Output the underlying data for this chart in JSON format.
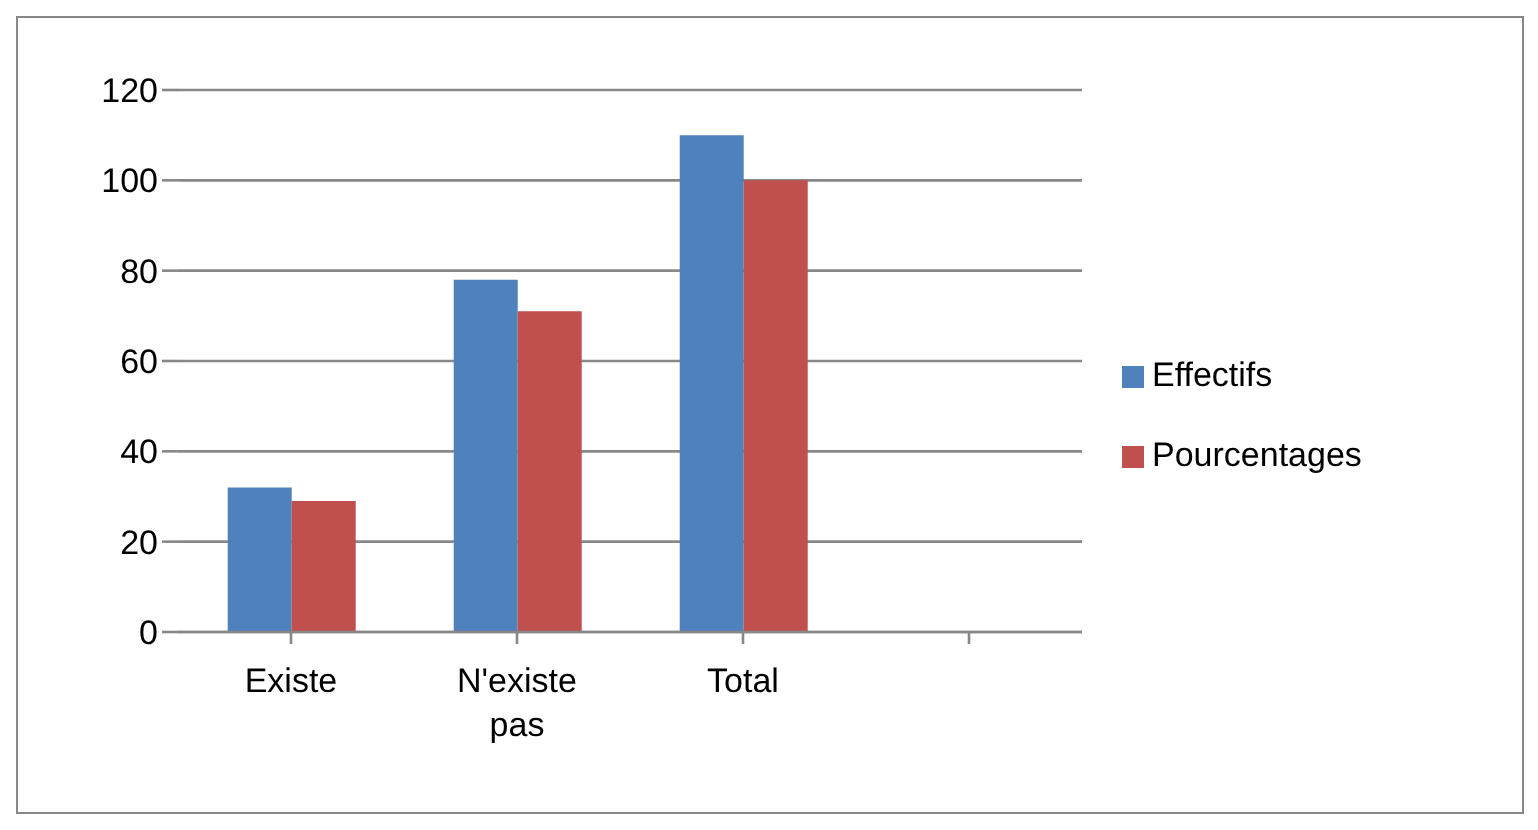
{
  "chart_data": {
    "type": "bar",
    "categories": [
      "Existe",
      "N'existe pas",
      "Total",
      null
    ],
    "series": [
      {
        "name": "Effectifs",
        "color": "#4f81bd",
        "values": [
          32,
          78,
          110,
          null
        ]
      },
      {
        "name": "Pourcentages",
        "color": "#c0504d",
        "values": [
          29,
          71,
          100,
          null
        ]
      }
    ],
    "ylim": [
      0,
      120
    ],
    "yticks": [
      0,
      20,
      40,
      60,
      80,
      100,
      120
    ],
    "grid": "y",
    "legend": "right"
  }
}
